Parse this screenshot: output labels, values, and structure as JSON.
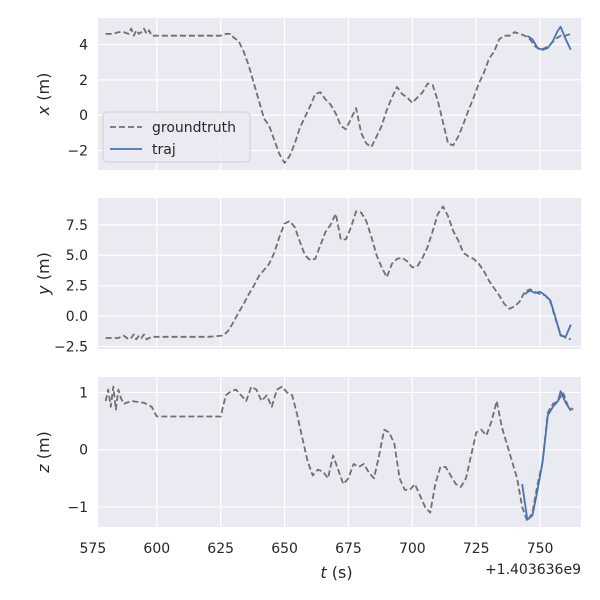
{
  "chart_data": [
    {
      "type": "line",
      "ylabel_var": "x",
      "ylabel_unit": " (m)",
      "xlim": [
        577,
        766
      ],
      "ylim": [
        -3.1,
        5.5
      ],
      "xticks": [
        575,
        600,
        625,
        650,
        675,
        700,
        725,
        750
      ],
      "yticks": [
        -2,
        0,
        2,
        4
      ],
      "ytick_labels": [
        "−2",
        "0",
        "2",
        "4"
      ],
      "legend": {
        "position": "lower-left",
        "entries": [
          "groundtruth",
          "traj"
        ]
      },
      "series": [
        {
          "name": "groundtruth",
          "style": "dashed",
          "color": "#707070",
          "x": [
            580,
            583,
            585,
            587,
            589,
            590,
            591,
            592,
            593,
            594,
            595,
            596,
            597,
            598,
            600,
            610,
            620,
            625,
            627,
            629,
            630,
            632,
            634,
            636,
            638,
            640,
            642,
            644,
            646,
            648,
            650,
            652,
            654,
            656,
            658,
            660,
            662,
            664,
            666,
            668,
            670,
            672,
            674,
            676,
            678,
            680,
            682,
            684,
            686,
            688,
            690,
            692,
            694,
            696,
            698,
            700,
            702,
            704,
            706,
            708,
            710,
            712,
            714,
            716,
            718,
            720,
            722,
            724,
            726,
            728,
            730,
            732,
            734,
            736,
            738,
            740,
            742,
            744,
            746,
            748,
            750,
            752,
            754,
            756,
            758,
            760,
            762
          ],
          "y": [
            4.6,
            4.6,
            4.7,
            4.7,
            4.6,
            4.9,
            4.5,
            4.8,
            4.6,
            4.7,
            4.9,
            4.6,
            4.8,
            4.5,
            4.5,
            4.5,
            4.5,
            4.5,
            4.6,
            4.6,
            4.4,
            4.2,
            3.6,
            2.8,
            1.8,
            0.8,
            -0.2,
            -0.6,
            -1.4,
            -2.2,
            -2.7,
            -2.3,
            -1.6,
            -0.7,
            -0.1,
            0.5,
            1.2,
            1.3,
            0.9,
            0.6,
            0.1,
            -0.6,
            -0.8,
            -0.2,
            0.4,
            -1.0,
            -1.6,
            -1.8,
            -1.2,
            -0.6,
            0.3,
            1.0,
            1.6,
            1.2,
            1.0,
            0.7,
            1.0,
            1.3,
            1.8,
            1.7,
            0.8,
            -0.4,
            -1.6,
            -1.7,
            -1.2,
            -0.5,
            0.3,
            1.0,
            1.8,
            2.4,
            3.2,
            3.6,
            4.3,
            4.5,
            4.5,
            4.7,
            4.6,
            4.5,
            4.3,
            3.9,
            3.7,
            3.8,
            4.0,
            4.3,
            4.5,
            4.5,
            4.6
          ]
        },
        {
          "name": "traj",
          "style": "solid",
          "color": "#4c72b0",
          "x": [
            745,
            747,
            749,
            751,
            753,
            755,
            757,
            758,
            760,
            762
          ],
          "y": [
            4.5,
            4.3,
            3.8,
            3.7,
            3.8,
            4.2,
            4.8,
            5.0,
            4.3,
            3.7
          ]
        }
      ]
    },
    {
      "type": "line",
      "ylabel_var": "y",
      "ylabel_unit": " (m)",
      "xlim": [
        577,
        766
      ],
      "ylim": [
        -2.7,
        9.7
      ],
      "xticks": [
        575,
        600,
        625,
        650,
        675,
        700,
        725,
        750
      ],
      "yticks": [
        -2.5,
        0.0,
        2.5,
        5.0,
        7.5
      ],
      "ytick_labels": [
        "−2.5",
        "0.0",
        "2.5",
        "5.0",
        "7.5"
      ],
      "series": [
        {
          "name": "groundtruth",
          "style": "dashed",
          "color": "#707070",
          "x": [
            580,
            585,
            587,
            589,
            590,
            591,
            592,
            593,
            594,
            595,
            596,
            598,
            600,
            610,
            620,
            626,
            628,
            630,
            632,
            634,
            636,
            638,
            640,
            642,
            644,
            646,
            648,
            650,
            652,
            654,
            656,
            658,
            660,
            662,
            664,
            666,
            668,
            670,
            672,
            674,
            676,
            678,
            680,
            682,
            684,
            686,
            688,
            690,
            692,
            694,
            696,
            698,
            700,
            702,
            704,
            706,
            708,
            710,
            712,
            714,
            716,
            718,
            720,
            722,
            724,
            726,
            728,
            730,
            732,
            734,
            736,
            738,
            740,
            742,
            744,
            746,
            748,
            750,
            752,
            754,
            756,
            758,
            760,
            762
          ],
          "y": [
            -1.8,
            -1.8,
            -1.6,
            -1.9,
            -1.8,
            -1.5,
            -1.9,
            -1.6,
            -1.8,
            -1.5,
            -1.9,
            -1.7,
            -1.7,
            -1.7,
            -1.7,
            -1.6,
            -1.2,
            -0.5,
            0.3,
            1.0,
            1.8,
            2.5,
            3.3,
            3.8,
            4.3,
            5.2,
            6.5,
            7.6,
            7.8,
            7.3,
            6.1,
            5.0,
            4.6,
            4.7,
            5.8,
            6.9,
            7.5,
            8.4,
            6.3,
            6.3,
            7.3,
            8.6,
            8.5,
            7.8,
            6.5,
            5.0,
            4.0,
            3.2,
            4.3,
            4.7,
            4.8,
            4.5,
            4.0,
            4.1,
            4.8,
            5.7,
            7.0,
            8.4,
            9.0,
            8.2,
            7.0,
            6.2,
            5.2,
            4.9,
            4.7,
            4.3,
            3.7,
            2.9,
            2.3,
            1.7,
            1.0,
            0.6,
            0.8,
            1.2,
            2.0,
            2.2,
            2.0,
            1.8,
            1.7,
            1.2,
            -0.2,
            -1.5,
            -1.8,
            -1.9
          ]
        },
        {
          "name": "traj",
          "style": "solid",
          "color": "#4c72b0",
          "x": [
            744,
            746,
            748,
            750,
            752,
            754,
            756,
            758,
            760,
            762
          ],
          "y": [
            1.8,
            2.1,
            1.9,
            2.0,
            1.7,
            1.3,
            -0.1,
            -1.6,
            -1.7,
            -0.7
          ]
        }
      ]
    },
    {
      "type": "line",
      "ylabel_var": "z",
      "ylabel_unit": " (m)",
      "xlabel_var": "t",
      "xlabel_unit": " (s)",
      "x_offset_label": "+1.403636e9",
      "xlim": [
        577,
        766
      ],
      "ylim": [
        -1.35,
        1.27
      ],
      "xticks": [
        575,
        600,
        625,
        650,
        675,
        700,
        725,
        750
      ],
      "xtick_labels": [
        "575",
        "600",
        "625",
        "650",
        "675",
        "700",
        "725",
        "750"
      ],
      "yticks": [
        -1,
        0,
        1
      ],
      "ytick_labels": [
        "−1",
        "0",
        "1"
      ],
      "series": [
        {
          "name": "groundtruth",
          "style": "dashed",
          "color": "#707070",
          "x": [
            580,
            581,
            582,
            583,
            584,
            585,
            586,
            587,
            590,
            595,
            598,
            600,
            610,
            620,
            625,
            627,
            629,
            631,
            633,
            635,
            637,
            639,
            641,
            643,
            645,
            647,
            649,
            651,
            653,
            655,
            657,
            659,
            661,
            663,
            665,
            667,
            669,
            671,
            673,
            675,
            677,
            679,
            681,
            683,
            685,
            687,
            689,
            691,
            693,
            695,
            697,
            699,
            701,
            703,
            705,
            707,
            709,
            711,
            713,
            715,
            717,
            719,
            721,
            723,
            725,
            727,
            729,
            731,
            733,
            735,
            737,
            739,
            741,
            743,
            745,
            747,
            749,
            751,
            753,
            755,
            757,
            759,
            761,
            763
          ],
          "y": [
            0.85,
            1.05,
            0.75,
            1.1,
            0.7,
            1.05,
            0.9,
            0.8,
            0.85,
            0.82,
            0.75,
            0.58,
            0.58,
            0.58,
            0.58,
            0.95,
            1.02,
            1.05,
            0.95,
            0.85,
            1.1,
            1.05,
            0.85,
            0.95,
            0.75,
            1.05,
            1.1,
            1.0,
            0.95,
            0.6,
            0.2,
            -0.2,
            -0.45,
            -0.35,
            -0.38,
            -0.5,
            -0.1,
            -0.35,
            -0.6,
            -0.5,
            -0.25,
            -0.3,
            -0.25,
            -0.4,
            -0.5,
            -0.1,
            0.35,
            0.3,
            0.1,
            -0.5,
            -0.7,
            -0.7,
            -0.6,
            -0.8,
            -1.0,
            -1.1,
            -0.6,
            -0.3,
            -0.3,
            -0.45,
            -0.6,
            -0.65,
            -0.5,
            -0.1,
            0.3,
            0.35,
            0.25,
            0.5,
            0.85,
            0.4,
            0.1,
            -0.2,
            -0.5,
            -1.0,
            -1.25,
            -1.1,
            -0.6,
            -0.2,
            0.65,
            0.8,
            0.85,
            1.0,
            0.75,
            0.7
          ]
        },
        {
          "name": "traj",
          "style": "solid",
          "color": "#4c72b0",
          "x": [
            743,
            745,
            747,
            749,
            751,
            753,
            755,
            757,
            758,
            760,
            762
          ],
          "y": [
            -0.6,
            -1.22,
            -1.15,
            -0.7,
            -0.2,
            0.6,
            0.75,
            0.85,
            1.02,
            0.82,
            0.68
          ]
        }
      ]
    }
  ]
}
